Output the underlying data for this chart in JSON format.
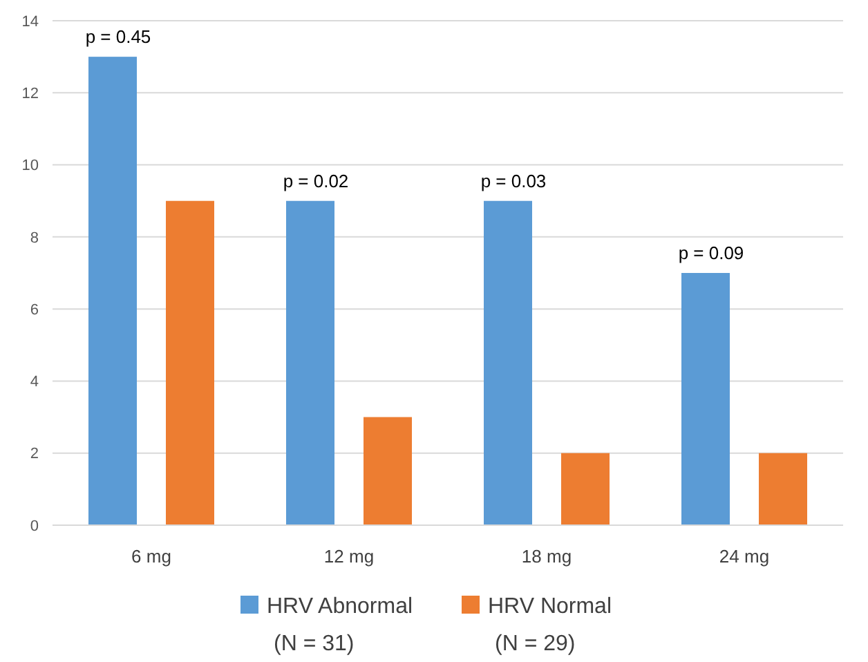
{
  "chart_data": {
    "type": "bar",
    "categories": [
      "6 mg",
      "12 mg",
      "18 mg",
      "24 mg"
    ],
    "series": [
      {
        "name": "HRV Abnormal\n(N = 31)",
        "color": "#5b9bd5",
        "values": [
          13,
          9,
          9,
          7
        ]
      },
      {
        "name": "HRV Normal\n(N = 29)",
        "color": "#ed7d31",
        "values": [
          9,
          3,
          2,
          2
        ]
      }
    ],
    "ylim": [
      0,
      14
    ],
    "yticks": [
      0,
      2,
      4,
      6,
      8,
      10,
      12,
      14
    ],
    "grid": "y",
    "legend": "bottom",
    "annotations": [
      "p = 0.45",
      "p = 0.02",
      "p = 0.03",
      "p = 0.09"
    ]
  }
}
